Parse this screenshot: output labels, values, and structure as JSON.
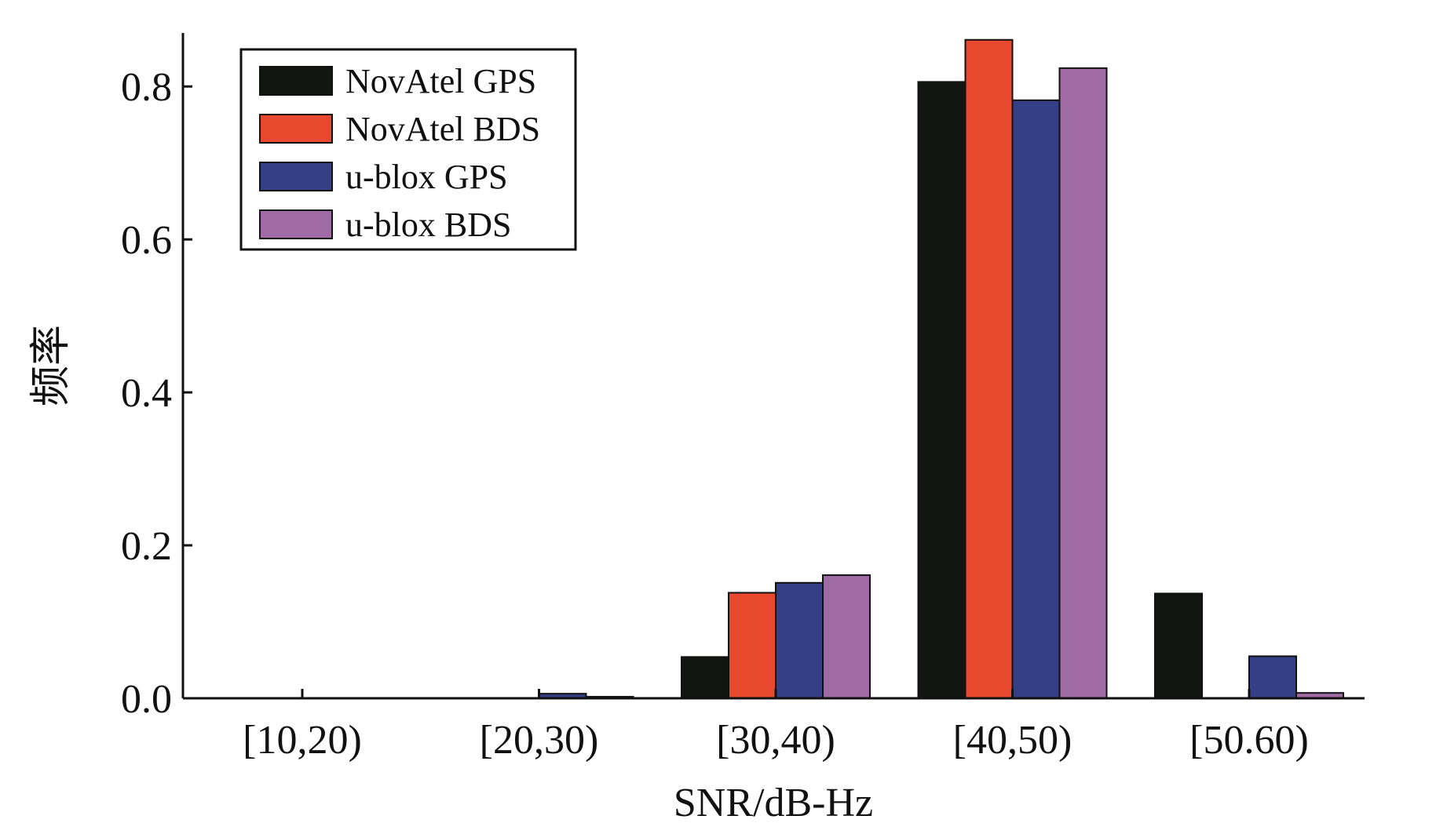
{
  "chart_data": {
    "type": "bar",
    "xlabel": "SNR/dB-Hz",
    "ylabel": "频率",
    "categories": [
      "[10,20)",
      "[20,30)",
      "[30,40)",
      "[40,50)",
      "[50.60)"
    ],
    "ylim": [
      0,
      0.87
    ],
    "yticks": [
      "0.0",
      "0.2",
      "0.4",
      "0.6",
      "0.8"
    ],
    "ytick_values": [
      0,
      0.2,
      0.4,
      0.6,
      0.8
    ],
    "legend_position": "top-left",
    "grid": false,
    "series": [
      {
        "name": "NovAtel GPS",
        "color": "#111611",
        "values": [
          0.0,
          0.0,
          0.054,
          0.806,
          0.137
        ]
      },
      {
        "name": "NovAtel BDS",
        "color": "#e8482d",
        "values": [
          0.0,
          0.0,
          0.138,
          0.861,
          0.0
        ]
      },
      {
        "name": "u-blox GPS",
        "color": "#353f85",
        "values": [
          0.0,
          0.006,
          0.151,
          0.782,
          0.055
        ]
      },
      {
        "name": "u-blox BDS",
        "color": "#a06aa5",
        "values": [
          0.0,
          0.002,
          0.161,
          0.824,
          0.007
        ]
      }
    ]
  }
}
